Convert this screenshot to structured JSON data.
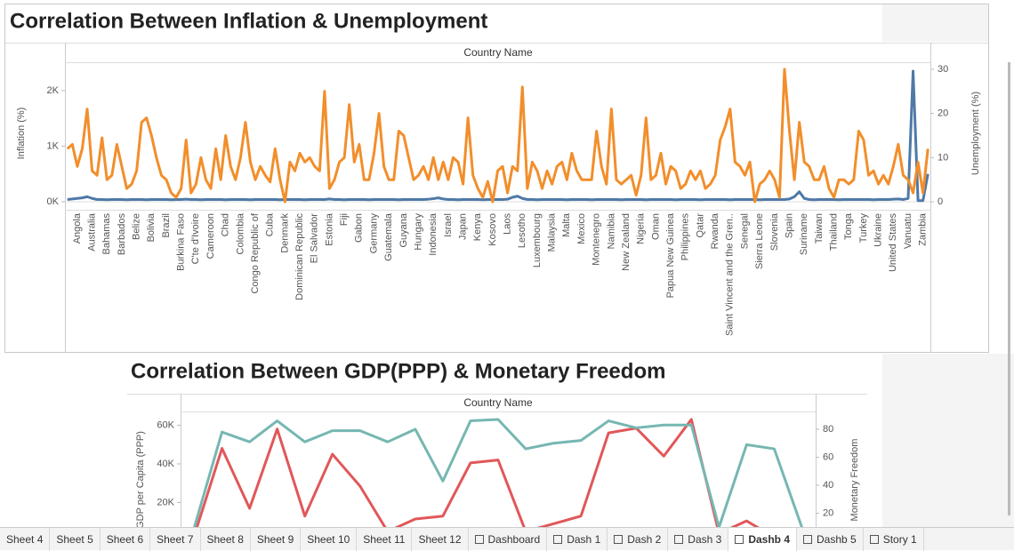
{
  "chart_data": [
    {
      "type": "line",
      "title": "Correlation Between Inflation & Unemployment",
      "header": "Country Name",
      "y_label": "Inflation (%)",
      "y2_label": "Unemployment (%)",
      "categories": [
        null,
        null,
        "Angola",
        null,
        null,
        "Australia",
        null,
        null,
        "Bahamas",
        null,
        null,
        "Barbados",
        null,
        null,
        "Belize",
        null,
        null,
        "Bolivia",
        null,
        null,
        "Brazil",
        null,
        null,
        "Burkina Faso",
        null,
        null,
        "C'te d'Ivoire",
        null,
        null,
        "Cameroon",
        null,
        null,
        "Chad",
        null,
        null,
        "Colombia",
        null,
        null,
        "Congo Republic of",
        null,
        null,
        "Cuba",
        null,
        null,
        "Denmark",
        null,
        null,
        "Dominican Republic",
        null,
        null,
        "El Salvador",
        null,
        null,
        "Estonia",
        null,
        null,
        "Fiji",
        null,
        null,
        "Gabon",
        null,
        null,
        "Germany",
        null,
        null,
        "Guatemala",
        null,
        null,
        "Guyana",
        null,
        null,
        "Hungary",
        null,
        null,
        "Indonesia",
        null,
        null,
        "Israel",
        null,
        null,
        "Japan",
        null,
        null,
        "Kenya",
        null,
        null,
        "Kosovo",
        null,
        null,
        "Laos",
        null,
        null,
        "Lesotho",
        null,
        null,
        "Luxembourg",
        null,
        null,
        "Malaysia",
        null,
        null,
        "Malta",
        null,
        null,
        "Mexico",
        null,
        null,
        "Montenegro",
        null,
        null,
        "Namibia",
        null,
        null,
        "New Zealand",
        null,
        null,
        "Nigeria",
        null,
        null,
        "Oman",
        null,
        null,
        "Papua New Guinea",
        null,
        null,
        "Philippines",
        null,
        null,
        "Qatar",
        null,
        null,
        "Rwanda",
        null,
        null,
        "Saint Vincent and the Gren..",
        null,
        null,
        "Senegal",
        null,
        null,
        "Sierra Leone",
        null,
        null,
        "Slovenia",
        null,
        null,
        "Spain",
        null,
        null,
        "Suriname",
        null,
        null,
        "Taiwan",
        null,
        null,
        "Thailand",
        null,
        null,
        "Tonga",
        null,
        null,
        "Turkey",
        null,
        null,
        "Ukraine",
        null,
        null,
        "United States",
        null,
        null,
        "Vanuatu",
        null,
        null,
        "Zambia",
        null
      ],
      "series": [
        {
          "name": "Inflation (%)",
          "color": "#4e79a7",
          "axis": "y",
          "values": [
            40,
            50,
            60,
            70,
            90,
            60,
            40,
            40,
            35,
            40,
            40,
            40,
            35,
            40,
            40,
            40,
            35,
            40,
            40,
            40,
            40,
            35,
            40,
            40,
            45,
            40,
            40,
            35,
            40,
            40,
            40,
            40,
            35,
            40,
            40,
            40,
            40,
            35,
            40,
            40,
            40,
            40,
            40,
            35,
            40,
            40,
            40,
            40,
            35,
            40,
            40,
            40,
            40,
            50,
            40,
            40,
            35,
            40,
            40,
            40,
            40,
            35,
            40,
            40,
            40,
            40,
            40,
            35,
            40,
            40,
            40,
            40,
            40,
            45,
            55,
            70,
            50,
            40,
            40,
            35,
            40,
            40,
            40,
            40,
            35,
            40,
            40,
            40,
            40,
            45,
            80,
            100,
            60,
            40,
            40,
            35,
            40,
            40,
            40,
            40,
            40,
            35,
            40,
            40,
            40,
            40,
            35,
            40,
            40,
            40,
            40,
            40,
            35,
            40,
            40,
            40,
            40,
            35,
            40,
            40,
            40,
            40,
            40,
            35,
            40,
            40,
            40,
            40,
            35,
            40,
            40,
            40,
            40,
            40,
            35,
            40,
            40,
            40,
            40,
            40,
            35,
            40,
            40,
            40,
            40,
            40,
            50,
            90,
            180,
            60,
            40,
            35,
            40,
            40,
            40,
            40,
            35,
            40,
            40,
            40,
            40,
            40,
            40,
            35,
            40,
            40,
            40,
            45,
            50,
            40,
            60,
            2350,
            20,
            20,
            500
          ]
        },
        {
          "name": "Unemployment (%)",
          "color": "#f28e2b",
          "axis": "y2",
          "values": [
            12,
            13,
            8,
            12,
            21,
            7,
            6,
            14.5,
            5,
            6,
            13,
            8,
            3,
            4,
            7,
            18,
            19,
            15,
            10,
            6,
            5,
            2,
            1,
            3,
            14,
            2,
            4,
            10,
            5,
            3,
            12,
            5,
            15,
            8,
            5,
            10,
            18,
            9,
            5,
            8,
            6,
            4.5,
            12,
            5,
            0,
            9,
            7,
            11,
            9,
            10,
            8,
            7,
            25,
            3,
            5,
            9,
            10,
            22,
            9,
            13,
            5,
            5,
            11,
            20,
            8,
            5,
            5,
            16,
            15,
            10,
            5,
            6,
            8,
            5,
            10,
            5,
            9,
            5,
            10,
            9,
            4,
            19,
            6,
            3,
            1,
            4.6,
            0,
            7,
            8,
            2,
            8,
            7,
            26,
            3,
            9,
            7,
            3,
            7,
            4,
            8,
            9,
            5,
            11,
            7,
            5,
            5,
            5,
            16,
            8,
            4,
            21,
            5,
            4,
            5,
            6,
            1.5,
            6,
            19,
            5,
            6,
            11,
            4,
            8,
            7,
            3,
            4,
            7,
            5,
            7,
            3,
            4,
            6,
            14,
            17,
            21,
            9,
            8,
            6,
            9,
            0,
            4,
            5,
            7,
            5,
            1,
            30,
            16,
            5,
            18,
            9,
            8,
            5,
            5,
            8,
            3,
            1,
            5,
            5,
            4,
            5,
            16,
            14,
            6,
            7,
            4,
            6,
            4,
            8,
            13,
            6,
            5,
            2,
            9,
            2,
            12
          ]
        }
      ],
      "ylim": [
        -144,
        2510
      ],
      "yticks": [
        {
          "value": 0,
          "label": "0K"
        },
        {
          "value": 1000,
          "label": "1K"
        },
        {
          "value": 2000,
          "label": "2K"
        }
      ],
      "y2lim": [
        -1.8,
        31.6
      ],
      "y2ticks": [
        0,
        10,
        20,
        30
      ]
    },
    {
      "type": "line",
      "title": "Correlation Between GDP(PPP) & Monetary Freedom",
      "header": "Country Name",
      "y_label": "GDP per Capita (PPP)",
      "y2_label": "Monetary Freedom",
      "categories": [
        null,
        null,
        null,
        null,
        null,
        null,
        null,
        null,
        null,
        null,
        null,
        null,
        null,
        null,
        null,
        null,
        null,
        null,
        null,
        null,
        null,
        null,
        null
      ],
      "series": [
        {
          "name": "GDP per Capita (PPP)",
          "color": "#e15759",
          "axis": "y",
          "values": [
            3000,
            48000,
            17000,
            58000,
            13000,
            45000,
            28500,
            5000,
            11500,
            13000,
            40500,
            42000,
            5000,
            9000,
            13000,
            56000,
            58500,
            44000,
            63000,
            4000,
            10500,
            2000,
            1000
          ]
        },
        {
          "name": "Monetary Freedom",
          "color": "#76b7b2",
          "axis": "y2",
          "values": [
            10,
            78,
            71,
            86,
            71,
            79,
            79,
            71,
            80,
            43,
            86,
            87,
            66,
            70,
            72,
            86,
            81,
            83,
            83,
            10,
            69,
            66,
            10
          ]
        }
      ],
      "ylim": [
        0,
        67100
      ],
      "yticks": [
        {
          "value": 20000,
          "label": "20K"
        },
        {
          "value": 40000,
          "label": "40K"
        },
        {
          "value": 60000,
          "label": "60K"
        }
      ],
      "y2lim": [
        0,
        92.7
      ],
      "y2ticks": [
        20,
        40,
        60,
        80
      ]
    }
  ],
  "tabs": [
    "Sheet 4",
    "Sheet 5",
    "Sheet 6",
    "Sheet 7",
    "Sheet 8",
    "Sheet 9",
    "Sheet 10",
    "Sheet 11",
    "Sheet 12",
    "Dashboard",
    "Dash 1",
    "Dash 2",
    "Dash 3",
    "Dashb 4",
    "Dashb 5",
    "Story 1"
  ],
  "tab_icons": [
    false,
    false,
    false,
    false,
    false,
    false,
    false,
    false,
    false,
    true,
    true,
    true,
    true,
    true,
    true,
    true
  ],
  "active_tab": 13
}
